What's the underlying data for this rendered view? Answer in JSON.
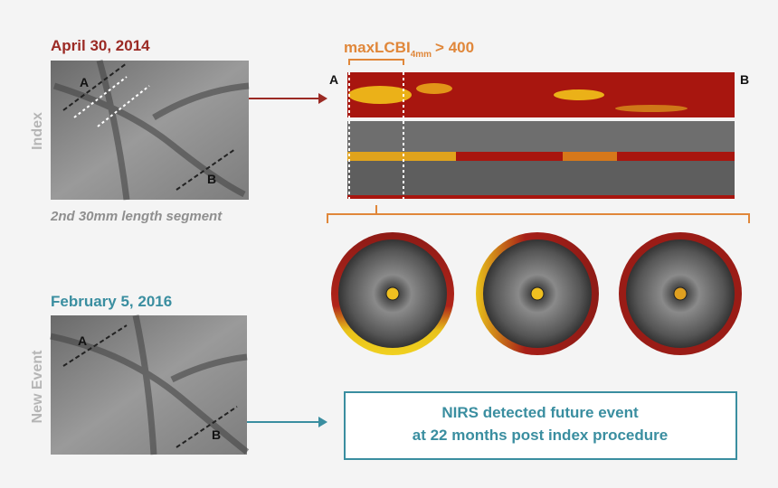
{
  "index_panel": {
    "date": "April 30, 2014",
    "side_label": "Index",
    "marker_a": "A",
    "marker_b": "B",
    "caption": "2nd 30mm length segment"
  },
  "event_panel": {
    "date": "February 5, 2016",
    "side_label": "New Event",
    "marker_a": "A",
    "marker_b": "B"
  },
  "chemogram": {
    "title": "maxLCBI",
    "subscript": "4mm",
    "threshold": "> 400",
    "start_label": "A",
    "end_label": "B"
  },
  "callout": {
    "line1": "NIRS detected future event",
    "line2": "at 22 months post index procedure"
  }
}
